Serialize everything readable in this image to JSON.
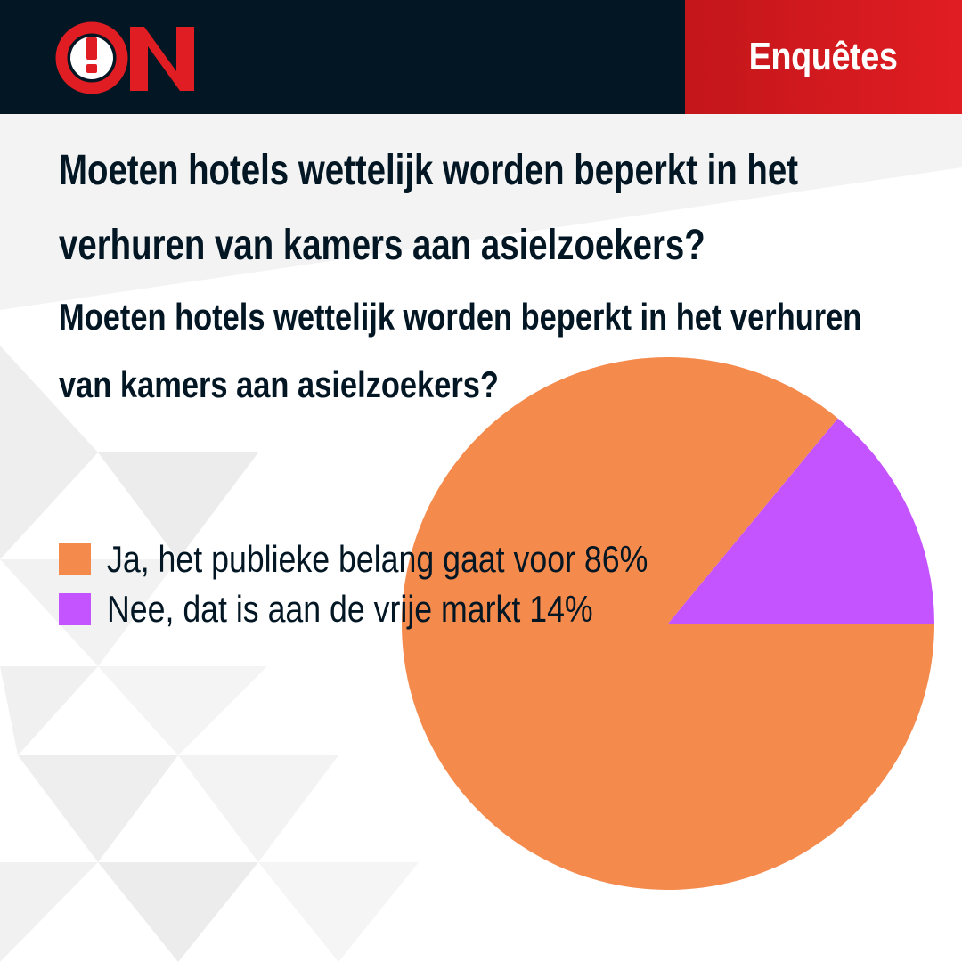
{
  "header": {
    "logo_text": "ON",
    "section": "Enquêtes"
  },
  "question": {
    "title": "Moeten hotels wettelijk worden beperkt in het verhuren van kamers aan asielzoekers?",
    "title_lines": [
      "Moeten hotels wettelijk worden beperkt in het",
      "verhuren van kamers aan asielzoekers?"
    ],
    "subtitle_lines": [
      "Moeten hotels wettelijk worden beperkt in het verhuren",
      "van kamers aan asielzoekers?"
    ]
  },
  "colors": {
    "header_bg": "#021623",
    "accent_red": "#e01d22",
    "slice_ja": "#f48a4c",
    "slice_nee": "#c454ff"
  },
  "chart_data": {
    "type": "pie",
    "legend_position": "left",
    "slices": [
      {
        "label": "Ja, het publieke belang gaat voor",
        "value": 86,
        "value_label": "86%",
        "color": "#f48a4c"
      },
      {
        "label": "Nee, dat is aan de vrije markt",
        "value": 14,
        "value_label": "14%",
        "color": "#c454ff"
      }
    ],
    "legend_entries": [
      "Ja, het publieke belang gaat voor 86%",
      "Nee, dat is aan de vrije markt 14%"
    ]
  }
}
